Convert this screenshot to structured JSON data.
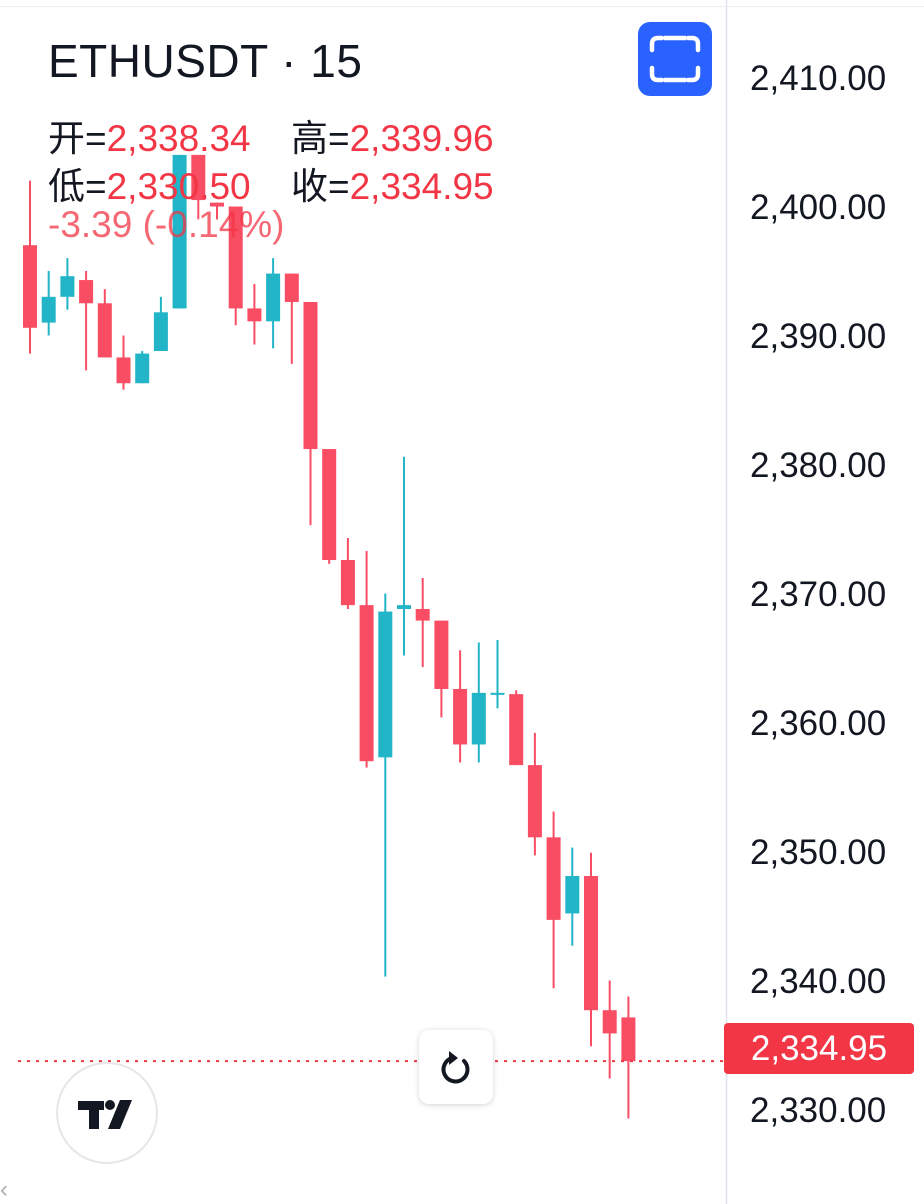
{
  "header": {
    "symbol": "ETHUSDT · 15",
    "open_key": "开=",
    "open_val": "2,338.34",
    "high_key": "高=",
    "high_val": "2,339.96",
    "low_key": "低=",
    "low_val": "2,330.50",
    "close_key": "收=",
    "close_val": "2,334.95",
    "change": "-3.39 (-0.14%)"
  },
  "price_axis": {
    "labels": [
      "2,410.00",
      "2,400.00",
      "2,390.00",
      "2,380.00",
      "2,370.00",
      "2,360.00",
      "2,350.00",
      "2,340.00",
      "2,330.00"
    ],
    "last_price": "2,334.95"
  },
  "colors": {
    "up": "#22b5c8",
    "down": "#f94d64",
    "last_price_line": "#f23645",
    "accent": "#2962ff"
  },
  "icons": {
    "fullscreen": "fullscreen-icon",
    "reset": "reset-rotate-icon",
    "logo": "tradingview-logo"
  },
  "chart_data": {
    "type": "candlestick",
    "symbol": "ETHUSDT",
    "interval": "15",
    "ylim": [
      2326,
      2415
    ],
    "last_price": 2334.95,
    "candles": [
      {
        "o": 2398.2,
        "h": 2403.2,
        "l": 2389.8,
        "c": 2391.8
      },
      {
        "o": 2392.2,
        "h": 2396.2,
        "l": 2391.2,
        "c": 2394.2
      },
      {
        "o": 2394.2,
        "h": 2397.2,
        "l": 2393.2,
        "c": 2395.8
      },
      {
        "o": 2395.5,
        "h": 2396.2,
        "l": 2388.5,
        "c": 2393.7
      },
      {
        "o": 2393.7,
        "h": 2394.8,
        "l": 2389.8,
        "c": 2389.5
      },
      {
        "o": 2389.5,
        "h": 2391.2,
        "l": 2387.0,
        "c": 2387.5
      },
      {
        "o": 2387.5,
        "h": 2390.0,
        "l": 2387.5,
        "c": 2389.8
      },
      {
        "o": 2390.0,
        "h": 2394.2,
        "l": 2390.0,
        "c": 2393.0
      },
      {
        "o": 2393.3,
        "h": 2405.2,
        "l": 2393.3,
        "c": 2405.2
      },
      {
        "o": 2405.2,
        "h": 2405.2,
        "l": 2400.2,
        "c": 2401.7
      },
      {
        "o": 2401.5,
        "h": 2401.5,
        "l": 2400.2,
        "c": 2401.2
      },
      {
        "o": 2401.2,
        "h": 2401.2,
        "l": 2392.0,
        "c": 2393.3
      },
      {
        "o": 2393.3,
        "h": 2395.2,
        "l": 2390.5,
        "c": 2392.3
      },
      {
        "o": 2392.3,
        "h": 2397.2,
        "l": 2390.2,
        "c": 2396.0
      },
      {
        "o": 2396.0,
        "h": 2396.0,
        "l": 2389.0,
        "c": 2393.8
      },
      {
        "o": 2393.8,
        "h": 2393.8,
        "l": 2376.5,
        "c": 2382.4
      },
      {
        "o": 2382.4,
        "h": 2382.4,
        "l": 2373.5,
        "c": 2373.8
      },
      {
        "o": 2373.8,
        "h": 2375.5,
        "l": 2370.0,
        "c": 2370.3
      },
      {
        "o": 2370.3,
        "h": 2374.5,
        "l": 2357.7,
        "c": 2358.2
      },
      {
        "o": 2358.5,
        "h": 2371.2,
        "l": 2341.5,
        "c": 2369.8
      },
      {
        "o": 2370.0,
        "h": 2381.8,
        "l": 2366.4,
        "c": 2370.3
      },
      {
        "o": 2370.0,
        "h": 2372.4,
        "l": 2365.5,
        "c": 2369.1
      },
      {
        "o": 2369.1,
        "h": 2369.1,
        "l": 2361.6,
        "c": 2363.8
      },
      {
        "o": 2363.8,
        "h": 2366.8,
        "l": 2358.1,
        "c": 2359.5
      },
      {
        "o": 2359.5,
        "h": 2367.4,
        "l": 2358.1,
        "c": 2363.5
      },
      {
        "o": 2363.4,
        "h": 2367.6,
        "l": 2362.3,
        "c": 2363.5
      },
      {
        "o": 2363.4,
        "h": 2363.7,
        "l": 2357.9,
        "c": 2357.9
      },
      {
        "o": 2357.9,
        "h": 2360.4,
        "l": 2350.9,
        "c": 2352.3
      },
      {
        "o": 2352.3,
        "h": 2354.3,
        "l": 2340.6,
        "c": 2345.9
      },
      {
        "o": 2346.4,
        "h": 2351.5,
        "l": 2343.9,
        "c": 2349.3
      },
      {
        "o": 2349.3,
        "h": 2351.1,
        "l": 2336.1,
        "c": 2338.9
      },
      {
        "o": 2338.9,
        "h": 2341.2,
        "l": 2333.6,
        "c": 2337.1
      },
      {
        "o": 2338.34,
        "h": 2339.96,
        "l": 2330.5,
        "c": 2334.95
      }
    ]
  }
}
